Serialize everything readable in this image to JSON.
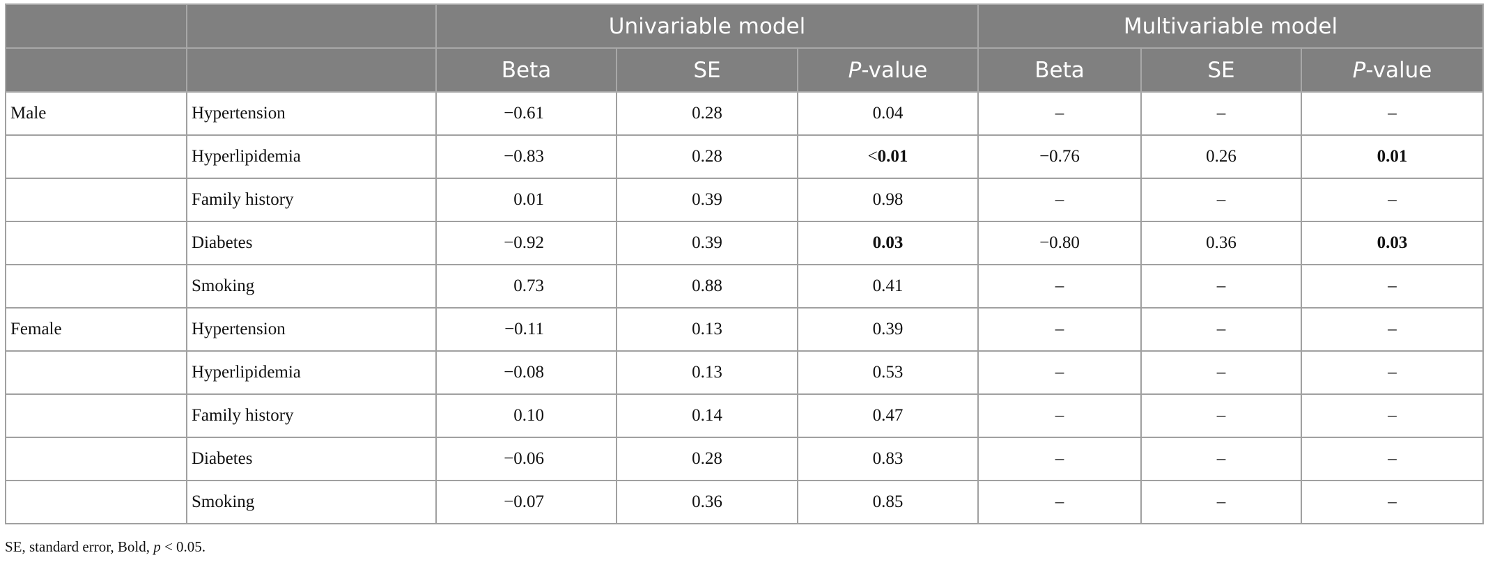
{
  "table": {
    "header": {
      "groups": [
        "Univariable model",
        "Multivariable model"
      ],
      "columns": [
        "Beta",
        "SE",
        {
          "italic": "P",
          "text": "-value"
        },
        "Beta",
        "SE",
        {
          "italic": "P",
          "text": "-value"
        }
      ]
    },
    "rows": [
      {
        "group": "Male",
        "variable": "Hypertension",
        "cells": [
          "−0.61",
          "0.28",
          "0.04",
          "–",
          "–",
          "–"
        ]
      },
      {
        "variable": "Hyperlipidemia",
        "cells": [
          "−0.83",
          "0.28",
          {
            "prefix": "<",
            "text": "0.01",
            "bold": true
          },
          "−0.76",
          "0.26",
          {
            "text": "0.01",
            "bold": true
          }
        ]
      },
      {
        "variable": "Family history",
        "cells": [
          "0.01",
          "0.39",
          "0.98",
          "–",
          "–",
          "–"
        ]
      },
      {
        "variable": "Diabetes",
        "cells": [
          "−0.92",
          "0.39",
          {
            "text": "0.03",
            "bold": true
          },
          "−0.80",
          "0.36",
          {
            "text": "0.03",
            "bold": true
          }
        ]
      },
      {
        "variable": "Smoking",
        "cells": [
          "0.73",
          "0.88",
          "0.41",
          "–",
          "–",
          "–"
        ]
      },
      {
        "group": "Female",
        "variable": "Hypertension",
        "cells": [
          "−0.11",
          "0.13",
          "0.39",
          "–",
          "–",
          "–"
        ]
      },
      {
        "variable": "Hyperlipidemia",
        "cells": [
          "−0.08",
          "0.13",
          "0.53",
          "–",
          "–",
          "–"
        ]
      },
      {
        "variable": "Family history",
        "cells": [
          "0.10",
          "0.14",
          "0.47",
          "–",
          "–",
          "–"
        ]
      },
      {
        "variable": "Diabetes",
        "cells": [
          "−0.06",
          "0.28",
          "0.83",
          "–",
          "–",
          "–"
        ]
      },
      {
        "variable": "Smoking",
        "cells": [
          "−0.07",
          "0.36",
          "0.85",
          "–",
          "–",
          "–"
        ]
      }
    ],
    "footnote": {
      "text": "SE, standard error, Bold,",
      "italic": "p",
      "rest": "< 0.05."
    }
  }
}
